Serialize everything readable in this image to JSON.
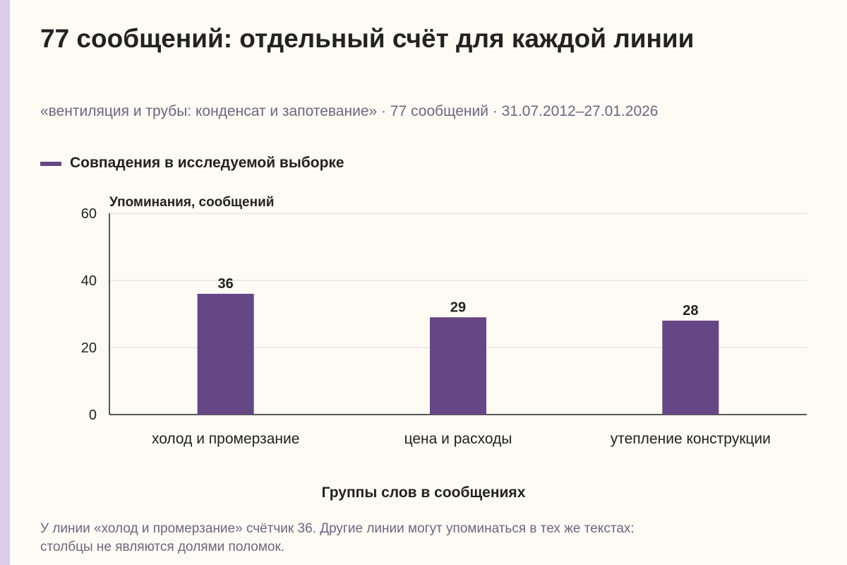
{
  "page": {
    "title": "77 сообщений: отдельный счёт для каждой линии",
    "subtitle": "«вентиляция и трубы: конденсат и запотевание» · 77 сообщений · 31.07.2012–27.01.2026",
    "footnote_line1": "У линии «холод и промерзание» счётчик 36. Другие линии могут упоминаться в тех же текстах:",
    "footnote_line2": "столбцы не являются долями поломок."
  },
  "colors": {
    "bar": "#664785",
    "axis": "#222222",
    "grid": "#dddddd",
    "background": "#fdfbf4"
  },
  "chart_data": {
    "type": "bar",
    "categories": [
      "холод и промерзание",
      "цена и расходы",
      "утепление конструкции"
    ],
    "series": [
      {
        "name": "Совпадения в исследуемой выборке",
        "values": [
          36,
          29,
          28
        ]
      }
    ],
    "data_labels": [
      "36",
      "29",
      "28"
    ],
    "ylabel": "Упоминания, сообщений",
    "xlabel": "Группы слов в сообщениях",
    "ylim": [
      0,
      60
    ],
    "yticks": [
      0,
      20,
      40,
      60
    ],
    "grid": true,
    "legend_position": "top-left"
  }
}
